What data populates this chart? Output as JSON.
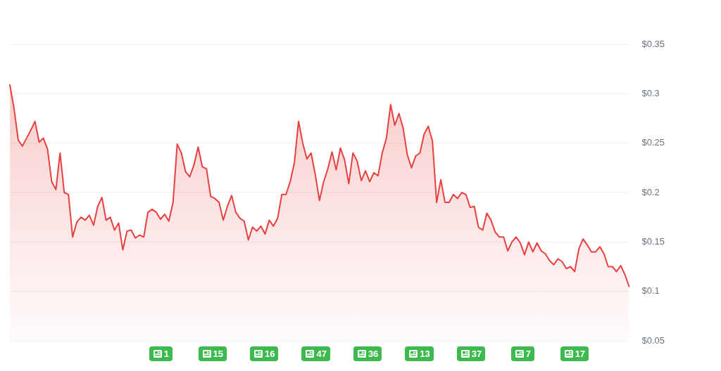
{
  "chart_data": {
    "type": "area",
    "categories": [
      null,
      null,
      null,
      null,
      null,
      null,
      null,
      null,
      null,
      null,
      null,
      null,
      null,
      null,
      null,
      null,
      null,
      null,
      null,
      null,
      null,
      null,
      null,
      null,
      null,
      null,
      null,
      null,
      null,
      null,
      null,
      null,
      null,
      null,
      null,
      null,
      null,
      null,
      null,
      null,
      null,
      null,
      null,
      null,
      null,
      null,
      null,
      null,
      null,
      null,
      null,
      null,
      null,
      null,
      null,
      null,
      null,
      null,
      null,
      null,
      null,
      null,
      null,
      null,
      null,
      null,
      null,
      null,
      null,
      null,
      null,
      null,
      null,
      null,
      null,
      null,
      null,
      null,
      null,
      null,
      null,
      null,
      null,
      null,
      null,
      null,
      null,
      null,
      null,
      null,
      null,
      null,
      null,
      null,
      null,
      null,
      null,
      null,
      null,
      null,
      null,
      null,
      null,
      null,
      null,
      null,
      null,
      null,
      null,
      null,
      null,
      null,
      null,
      null,
      null,
      null,
      null,
      null,
      null,
      null,
      null,
      null,
      null,
      null,
      null,
      null,
      null,
      null,
      null,
      null,
      null,
      null,
      null,
      null,
      null,
      null,
      null,
      null,
      null,
      null,
      null,
      null,
      null,
      null,
      null,
      null,
      null,
      null,
      null
    ],
    "values": [
      0.309,
      0.285,
      0.253,
      0.247,
      0.255,
      0.263,
      0.272,
      0.251,
      0.255,
      0.244,
      0.211,
      0.203,
      0.24,
      0.2,
      0.198,
      0.155,
      0.17,
      0.175,
      0.172,
      0.177,
      0.167,
      0.186,
      0.195,
      0.172,
      0.175,
      0.162,
      0.169,
      0.142,
      0.161,
      0.162,
      0.154,
      0.157,
      0.155,
      0.18,
      0.183,
      0.18,
      0.173,
      0.178,
      0.171,
      0.19,
      0.249,
      0.24,
      0.221,
      0.216,
      0.228,
      0.246,
      0.226,
      0.224,
      0.196,
      0.194,
      0.19,
      0.172,
      0.186,
      0.197,
      0.18,
      0.174,
      0.171,
      0.152,
      0.165,
      0.161,
      0.166,
      0.158,
      0.172,
      0.166,
      0.174,
      0.198,
      0.198,
      0.211,
      0.23,
      0.272,
      0.25,
      0.234,
      0.24,
      0.218,
      0.192,
      0.211,
      0.224,
      0.241,
      0.223,
      0.245,
      0.233,
      0.209,
      0.24,
      0.232,
      0.212,
      0.222,
      0.211,
      0.22,
      0.217,
      0.24,
      0.255,
      0.289,
      0.268,
      0.28,
      0.265,
      0.238,
      0.225,
      0.237,
      0.24,
      0.259,
      0.267,
      0.252,
      0.19,
      0.213,
      0.19,
      0.19,
      0.198,
      0.194,
      0.2,
      0.198,
      0.185,
      0.186,
      0.165,
      0.162,
      0.179,
      0.172,
      0.16,
      0.155,
      0.155,
      0.141,
      0.15,
      0.155,
      0.149,
      0.137,
      0.15,
      0.14,
      0.149,
      0.141,
      0.138,
      0.131,
      0.127,
      0.133,
      0.13,
      0.123,
      0.125,
      0.12,
      0.143,
      0.153,
      0.147,
      0.14,
      0.14,
      0.145,
      0.138,
      0.125,
      0.125,
      0.12,
      0.126,
      0.117,
      0.105
    ],
    "color": "#e8403f",
    "ylim": [
      0.05,
      0.35
    ],
    "yticks": [
      {
        "value": 0.05,
        "label": "$0.05"
      },
      {
        "value": 0.1,
        "label": "$0.1"
      },
      {
        "value": 0.15,
        "label": "$0.15"
      },
      {
        "value": 0.2,
        "label": "$0.2"
      },
      {
        "value": 0.25,
        "label": "$0.25"
      },
      {
        "value": 0.3,
        "label": "$0.3"
      },
      {
        "value": 0.35,
        "label": "$0.35"
      }
    ],
    "grid": "y",
    "annotations": [
      "1",
      "15",
      "16",
      "47",
      "36",
      "13",
      "37",
      "7",
      "17"
    ]
  }
}
